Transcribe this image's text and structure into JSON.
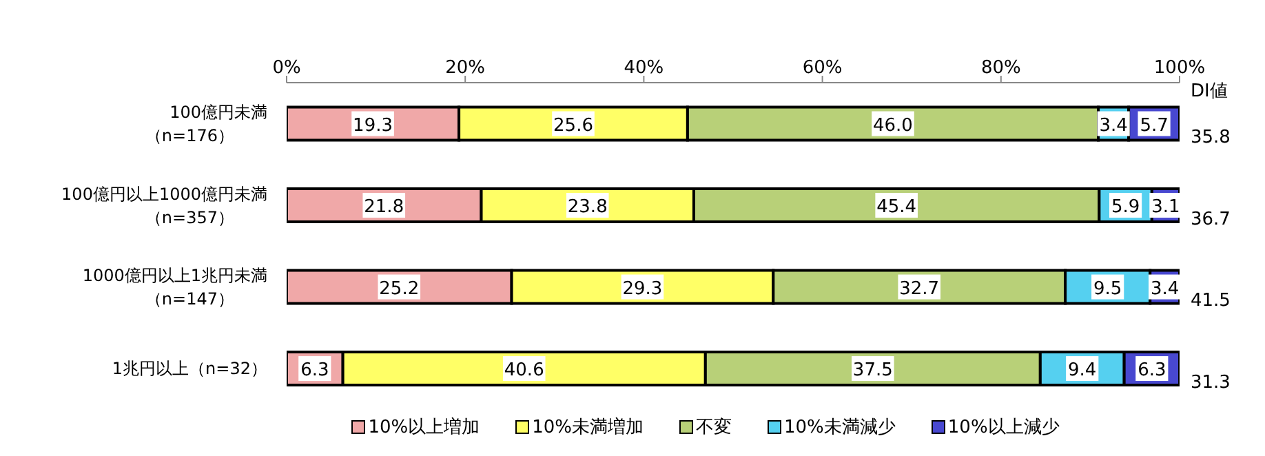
{
  "chart_data": {
    "type": "bar",
    "orientation": "horizontal",
    "stacked": true,
    "categories": [
      "100億円未満（n=176）",
      "100億円以上1000億円未満（n=357）",
      "1000億円以上1兆円未満（n=147）",
      "1兆円以上（n=32）"
    ],
    "series": [
      {
        "name": "10%以上増加",
        "color": "#f0a8a8",
        "values": [
          19.3,
          21.8,
          25.2,
          6.3
        ],
        "value_labels": [
          "19.3",
          "21.8",
          "25.2",
          "6.3"
        ]
      },
      {
        "name": "10%未満増加",
        "color": "#ffff66",
        "values": [
          25.6,
          23.8,
          29.3,
          40.6
        ],
        "value_labels": [
          "25.6",
          "23.8",
          "29.3",
          "40.6"
        ]
      },
      {
        "name": "不変",
        "color": "#b8d078",
        "values": [
          46.0,
          45.4,
          32.7,
          37.5
        ],
        "value_labels": [
          "46.0",
          "45.4",
          "32.7",
          "37.5"
        ]
      },
      {
        "name": "10%未満減少",
        "color": "#55d0f0",
        "values": [
          3.4,
          5.9,
          9.5,
          9.4
        ],
        "value_labels": [
          "3.4",
          "5.9",
          "9.5",
          "9.4"
        ]
      },
      {
        "name": "10%以上減少",
        "color": "#4848d0",
        "values": [
          5.7,
          3.1,
          3.4,
          6.3
        ],
        "value_labels": [
          "5.7",
          "3.1",
          "3.4",
          "6.3"
        ]
      }
    ],
    "xlim": [
      0,
      100
    ],
    "xticks": [
      {
        "value": 0,
        "label": "0%"
      },
      {
        "value": 20,
        "label": "20%"
      },
      {
        "value": 40,
        "label": "40%"
      },
      {
        "value": 60,
        "label": "60%"
      },
      {
        "value": 80,
        "label": "80%"
      },
      {
        "value": 100,
        "label": "100%"
      }
    ],
    "legend": "bottom",
    "annotations": [
      "DI値",
      "35.8",
      "36.7",
      "41.5",
      "31.3"
    ]
  }
}
